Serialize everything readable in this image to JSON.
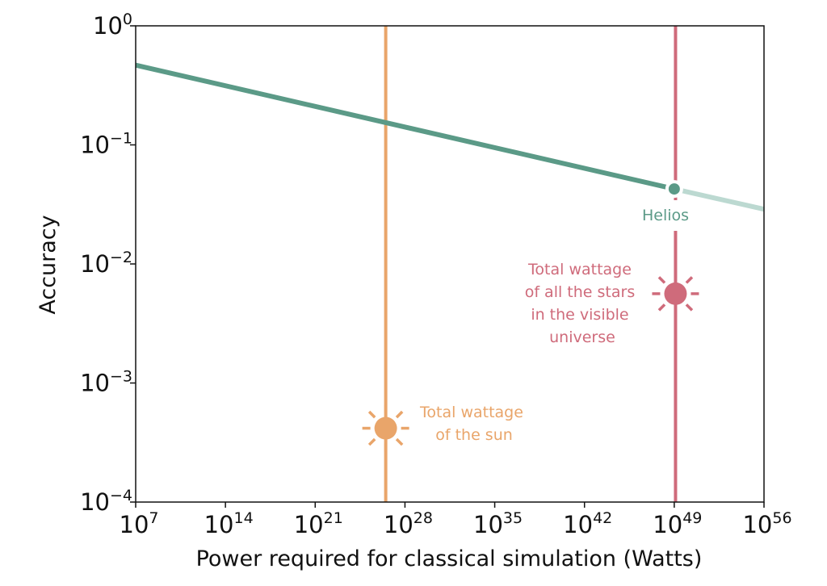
{
  "chart_data": {
    "type": "line",
    "title": "",
    "xlabel": "Power required for classical simulation (Watts)",
    "ylabel": "Accuracy",
    "xscale": "log",
    "yscale": "log",
    "xlim_exp": [
      7,
      56
    ],
    "ylim_exp": [
      -4,
      0
    ],
    "x_ticks": [
      {
        "base": "10",
        "exp": "7"
      },
      {
        "base": "10",
        "exp": "14"
      },
      {
        "base": "10",
        "exp": "21"
      },
      {
        "base": "10",
        "exp": "28"
      },
      {
        "base": "10",
        "exp": "35"
      },
      {
        "base": "10",
        "exp": "42"
      },
      {
        "base": "10",
        "exp": "49"
      },
      {
        "base": "10",
        "exp": "56"
      }
    ],
    "y_ticks": [
      {
        "base": "10",
        "exp": "0"
      },
      {
        "base": "10",
        "exp": "−1"
      },
      {
        "base": "10",
        "exp": "−2"
      },
      {
        "base": "10",
        "exp": "−3"
      },
      {
        "base": "10",
        "exp": "−4"
      }
    ],
    "grid": false,
    "series": [
      {
        "name": "Helios trend",
        "color": "#5b9a87",
        "x_exp": [
          7,
          49
        ],
        "y_exp": [
          -0.33,
          -1.37
        ]
      },
      {
        "name": "Helios trend (extrapolated)",
        "color": "#bcd9d1",
        "x_exp": [
          49,
          56
        ],
        "y_exp": [
          -1.37,
          -1.54
        ]
      }
    ],
    "points": [
      {
        "name": "Helios",
        "x_exp": 49.0,
        "y_exp": -1.37,
        "color": "#5b9a87"
      }
    ],
    "vlines": [
      {
        "name": "sun",
        "x_exp": 26.5,
        "color": "#e9a56a"
      },
      {
        "name": "stars",
        "x_exp": 49.1,
        "color": "#cf6b7b"
      }
    ],
    "markers": [
      {
        "name": "sun-marker",
        "x_exp": 26.5,
        "y_exp": -3.38,
        "color": "#e9a56a"
      },
      {
        "name": "stars-marker",
        "x_exp": 49.1,
        "y_exp": -2.25,
        "color": "#cf6b7b"
      }
    ],
    "annotations": {
      "helios": "Helios",
      "sun": [
        "Total wattage",
        "of the sun"
      ],
      "stars": [
        "Total wattage",
        "of all the stars",
        "in the visible",
        "universe"
      ]
    }
  }
}
